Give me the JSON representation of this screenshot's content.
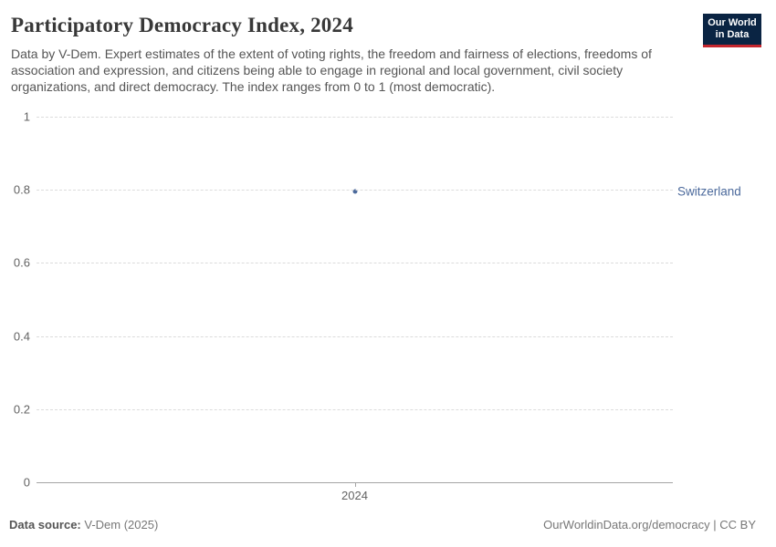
{
  "header": {
    "title": "Participatory Democracy Index, 2024",
    "subtitle": "Data by V-Dem. Expert estimates of the extent of voting rights, the freedom and fairness of elections, freedoms of association and expression, and citizens being able to engage in regional and local government, civil society organizations, and direct democracy. The index ranges from 0 to 1 (most democratic).",
    "logo": {
      "line1": "Our World",
      "line2": "in Data"
    }
  },
  "chart_data": {
    "type": "scatter",
    "title": "Participatory Democracy Index, 2024",
    "x": [
      2024
    ],
    "series": [
      {
        "name": "Switzerland",
        "values": [
          0.795
        ],
        "color": "#4C6A9C"
      }
    ],
    "xlabel": "",
    "ylabel": "",
    "ylim": [
      0,
      1
    ],
    "yticks": [
      0,
      0.2,
      0.4,
      0.6,
      0.8,
      1
    ],
    "ytick_labels": [
      "0",
      "0.2",
      "0.4",
      "0.6",
      "0.8",
      "1"
    ],
    "xtick_labels": [
      "2024"
    ],
    "grid": "horizontal-dashed",
    "legend_position": "right-of-point"
  },
  "footer": {
    "source_label": "Data source:",
    "source_value": " V-Dem (2025)",
    "credit": "OurWorldinData.org/democracy | CC BY"
  },
  "colors": {
    "accent_blue": "#4C6A9C",
    "logo_navy": "#0A2443",
    "logo_red": "#C4262E",
    "gridline": "#dcdcdc",
    "axis": "#a5a5a5",
    "title_text": "#383838",
    "subtitle_text": "#555555",
    "tick_text": "#636363",
    "footer_text": "#777777"
  }
}
